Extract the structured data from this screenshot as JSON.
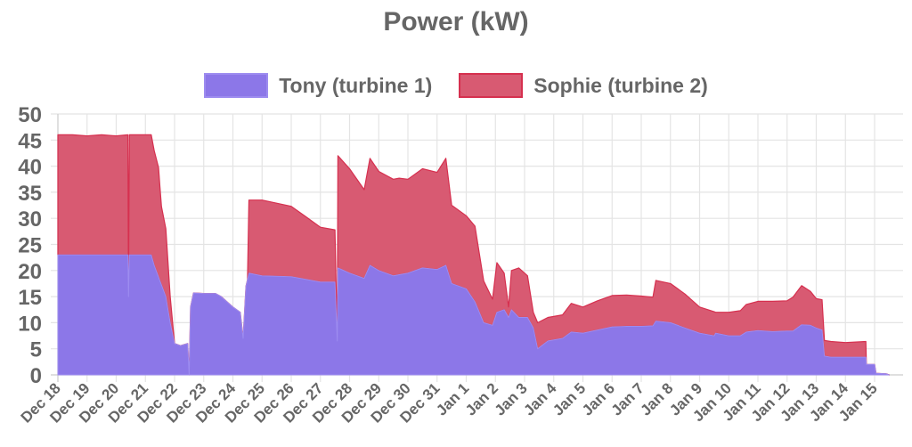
{
  "chart_data": {
    "type": "area",
    "stacked": true,
    "title": "Power (kW)",
    "xlabel": "",
    "ylabel": "",
    "ylim": [
      0,
      50
    ],
    "yticks": [
      0,
      5,
      10,
      15,
      20,
      25,
      30,
      35,
      40,
      45,
      50
    ],
    "grid": true,
    "legend_position": "top",
    "x_tick_labels": [
      "Dec 18",
      "Dec 19",
      "Dec 20",
      "Dec 21",
      "Dec 22",
      "Dec 23",
      "Dec 24",
      "Dec 25",
      "Dec 26",
      "Dec 27",
      "Dec 28",
      "Dec 29",
      "Dec 30",
      "Dec 31",
      "Jan 1",
      "Jan 2",
      "Jan 3",
      "Jan 4",
      "Jan 5",
      "Jan 6",
      "Jan 7",
      "Jan 8",
      "Jan 9",
      "Jan 10",
      "Jan 11",
      "Jan 12",
      "Jan 13",
      "Jan 14",
      "Jan 15"
    ],
    "x_unit": "days since Dec 18",
    "series": [
      {
        "name": "Tony (turbine 1)",
        "color": "#8c77e8",
        "border": "#9d8cf0",
        "points": [
          [
            0,
            23
          ],
          [
            2.4,
            23
          ],
          [
            2.42,
            15
          ],
          [
            2.45,
            23
          ],
          [
            3.2,
            23
          ],
          [
            3.3,
            21
          ],
          [
            3.5,
            18
          ],
          [
            3.7,
            15
          ],
          [
            3.85,
            10
          ],
          [
            4.0,
            6
          ],
          [
            4.2,
            5.6
          ],
          [
            4.45,
            6
          ],
          [
            4.5,
            0
          ],
          [
            4.55,
            13
          ],
          [
            4.65,
            15.7
          ],
          [
            5.0,
            15.6
          ],
          [
            5.4,
            15.6
          ],
          [
            5.6,
            15
          ],
          [
            5.8,
            14
          ],
          [
            6.0,
            13
          ],
          [
            6.25,
            12
          ],
          [
            6.35,
            7
          ],
          [
            6.45,
            17
          ],
          [
            6.55,
            19.5
          ],
          [
            7.0,
            19
          ],
          [
            8.0,
            18.8
          ],
          [
            8.5,
            18.3
          ],
          [
            9.0,
            17.8
          ],
          [
            9.5,
            17.8
          ],
          [
            9.58,
            6.5
          ],
          [
            9.6,
            20.5
          ],
          [
            10.0,
            19.5
          ],
          [
            10.5,
            18.5
          ],
          [
            10.7,
            21
          ],
          [
            11.0,
            20
          ],
          [
            11.5,
            19
          ],
          [
            12.0,
            19.5
          ],
          [
            12.5,
            20.5
          ],
          [
            13.0,
            20.2
          ],
          [
            13.3,
            21
          ],
          [
            13.5,
            17.5
          ],
          [
            14.0,
            16.5
          ],
          [
            14.3,
            14
          ],
          [
            14.6,
            10
          ],
          [
            14.9,
            9.5
          ],
          [
            15.05,
            12
          ],
          [
            15.3,
            12.5
          ],
          [
            15.45,
            11
          ],
          [
            15.55,
            12.5
          ],
          [
            15.8,
            11
          ],
          [
            16.1,
            11
          ],
          [
            16.3,
            9
          ],
          [
            16.45,
            5
          ],
          [
            16.8,
            6.5
          ],
          [
            17.3,
            7
          ],
          [
            17.6,
            8.2
          ],
          [
            18.0,
            8
          ],
          [
            18.5,
            8.6
          ],
          [
            19.0,
            9.2
          ],
          [
            19.5,
            9.3
          ],
          [
            20.0,
            9.3
          ],
          [
            20.4,
            9.4
          ],
          [
            20.5,
            10.3
          ],
          [
            21.0,
            10
          ],
          [
            21.5,
            9
          ],
          [
            22.0,
            8
          ],
          [
            22.5,
            7.5
          ],
          [
            22.55,
            8
          ],
          [
            23.0,
            7.5
          ],
          [
            23.4,
            7.5
          ],
          [
            23.6,
            8.2
          ],
          [
            24.0,
            8.5
          ],
          [
            24.5,
            8.3
          ],
          [
            25.0,
            8.4
          ],
          [
            25.2,
            8.4
          ],
          [
            25.5,
            9.6
          ],
          [
            25.8,
            9.5
          ],
          [
            26.0,
            9
          ],
          [
            26.2,
            8.6
          ],
          [
            26.28,
            3.6
          ],
          [
            26.5,
            3.4
          ],
          [
            27.0,
            3.4
          ],
          [
            27.7,
            3.4
          ],
          [
            27.72,
            2
          ],
          [
            28.0,
            2
          ],
          [
            28.05,
            0.3
          ],
          [
            28.4,
            0.2
          ],
          [
            28.5,
            0
          ]
        ]
      },
      {
        "name": "Sophie (turbine 2)",
        "color": "#d85a72",
        "border": "#d6304f",
        "points": [
          [
            0,
            23
          ],
          [
            0.5,
            23
          ],
          [
            1.0,
            22.8
          ],
          [
            1.5,
            23
          ],
          [
            2.0,
            22.8
          ],
          [
            2.4,
            23
          ],
          [
            2.42,
            0
          ],
          [
            2.45,
            23
          ],
          [
            3.2,
            23
          ],
          [
            3.3,
            22
          ],
          [
            3.45,
            21
          ],
          [
            3.55,
            15
          ],
          [
            3.7,
            13
          ],
          [
            3.85,
            5
          ],
          [
            4.0,
            0
          ],
          [
            4.45,
            0
          ],
          [
            6.5,
            0
          ],
          [
            6.55,
            14
          ],
          [
            7.0,
            14.5
          ],
          [
            8.0,
            13.5
          ],
          [
            8.5,
            12
          ],
          [
            9.0,
            10.5
          ],
          [
            9.5,
            10
          ],
          [
            9.58,
            0
          ],
          [
            9.6,
            21.5
          ],
          [
            10.0,
            20
          ],
          [
            10.5,
            17
          ],
          [
            10.7,
            20.5
          ],
          [
            11.0,
            19
          ],
          [
            11.5,
            18.5
          ],
          [
            11.7,
            18.5
          ],
          [
            12.0,
            18
          ],
          [
            12.5,
            19
          ],
          [
            13.0,
            18.6
          ],
          [
            13.3,
            20.5
          ],
          [
            13.5,
            15
          ],
          [
            14.0,
            14
          ],
          [
            14.3,
            14.5
          ],
          [
            14.6,
            8
          ],
          [
            14.9,
            5
          ],
          [
            15.05,
            9.5
          ],
          [
            15.3,
            7
          ],
          [
            15.45,
            2
          ],
          [
            15.55,
            7.5
          ],
          [
            15.8,
            9.5
          ],
          [
            16.1,
            8
          ],
          [
            16.3,
            3
          ],
          [
            16.45,
            5
          ],
          [
            16.8,
            4.5
          ],
          [
            17.3,
            4.5
          ],
          [
            17.6,
            5.5
          ],
          [
            18.0,
            5
          ],
          [
            18.5,
            5.6
          ],
          [
            19.0,
            6
          ],
          [
            19.5,
            6
          ],
          [
            20.0,
            5.8
          ],
          [
            20.4,
            5.5
          ],
          [
            20.5,
            7.8
          ],
          [
            21.0,
            7.5
          ],
          [
            21.5,
            6.5
          ],
          [
            22.0,
            5
          ],
          [
            22.5,
            4.6
          ],
          [
            22.55,
            4
          ],
          [
            23.0,
            4.5
          ],
          [
            23.4,
            4.8
          ],
          [
            23.6,
            5.3
          ],
          [
            24.0,
            5.6
          ],
          [
            24.5,
            5.8
          ],
          [
            25.0,
            5.8
          ],
          [
            25.2,
            6.5
          ],
          [
            25.5,
            7.5
          ],
          [
            25.8,
            6.5
          ],
          [
            26.0,
            5.6
          ],
          [
            26.2,
            5.8
          ],
          [
            26.28,
            3
          ],
          [
            26.5,
            3
          ],
          [
            27.0,
            2.8
          ],
          [
            27.7,
            3
          ],
          [
            27.72,
            0
          ],
          [
            28.5,
            0
          ]
        ]
      }
    ]
  },
  "legend": {
    "items": [
      {
        "label": "Tony (turbine 1)"
      },
      {
        "label": "Sophie (turbine 2)"
      }
    ]
  }
}
